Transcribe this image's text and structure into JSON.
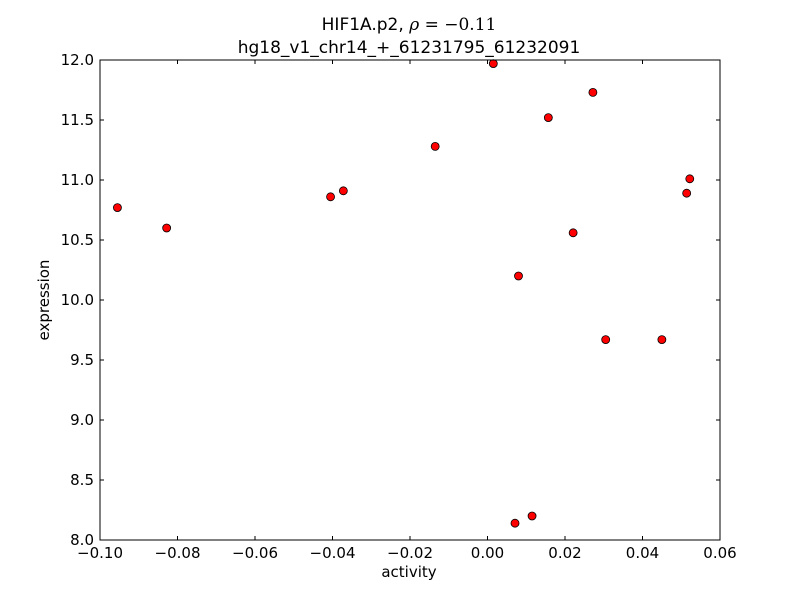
{
  "chart_data": {
    "type": "scatter",
    "title_prefix": "HIF1A.p2, ",
    "rho_symbol": "ρ",
    "rho_equals": " = ",
    "rho_value": "−0.11",
    "subtitle": "hg18_v1_chr14_+_61231795_61232091",
    "xlabel": "activity",
    "ylabel": "expression",
    "xlim": [
      -0.1,
      0.06
    ],
    "ylim": [
      8.0,
      12.0
    ],
    "xticks": [
      -0.1,
      -0.08,
      -0.06,
      -0.04,
      -0.02,
      0.0,
      0.02,
      0.04,
      0.06
    ],
    "xtick_labels": [
      "−0.10",
      "−0.08",
      "−0.06",
      "−0.04",
      "−0.02",
      "0.00",
      "0.02",
      "0.04",
      "0.06"
    ],
    "yticks": [
      8.0,
      8.5,
      9.0,
      9.5,
      10.0,
      10.5,
      11.0,
      11.5,
      12.0
    ],
    "ytick_labels": [
      "8.0",
      "8.5",
      "9.0",
      "9.5",
      "10.0",
      "10.5",
      "11.0",
      "11.5",
      "12.0"
    ],
    "grid": false,
    "marker_color": "#ff0000",
    "marker_edge_color": "#000000",
    "points": [
      {
        "x": -0.0955,
        "y": 10.77
      },
      {
        "x": -0.0828,
        "y": 10.6
      },
      {
        "x": -0.0405,
        "y": 10.86
      },
      {
        "x": -0.0372,
        "y": 10.91
      },
      {
        "x": -0.0135,
        "y": 11.28
      },
      {
        "x": 0.0015,
        "y": 11.97
      },
      {
        "x": 0.0071,
        "y": 8.14
      },
      {
        "x": 0.008,
        "y": 10.2
      },
      {
        "x": 0.0115,
        "y": 8.2
      },
      {
        "x": 0.0157,
        "y": 11.52
      },
      {
        "x": 0.0221,
        "y": 10.56
      },
      {
        "x": 0.0272,
        "y": 11.73
      },
      {
        "x": 0.0305,
        "y": 9.67
      },
      {
        "x": 0.045,
        "y": 9.67
      },
      {
        "x": 0.0514,
        "y": 10.89
      },
      {
        "x": 0.0522,
        "y": 11.01
      }
    ]
  }
}
